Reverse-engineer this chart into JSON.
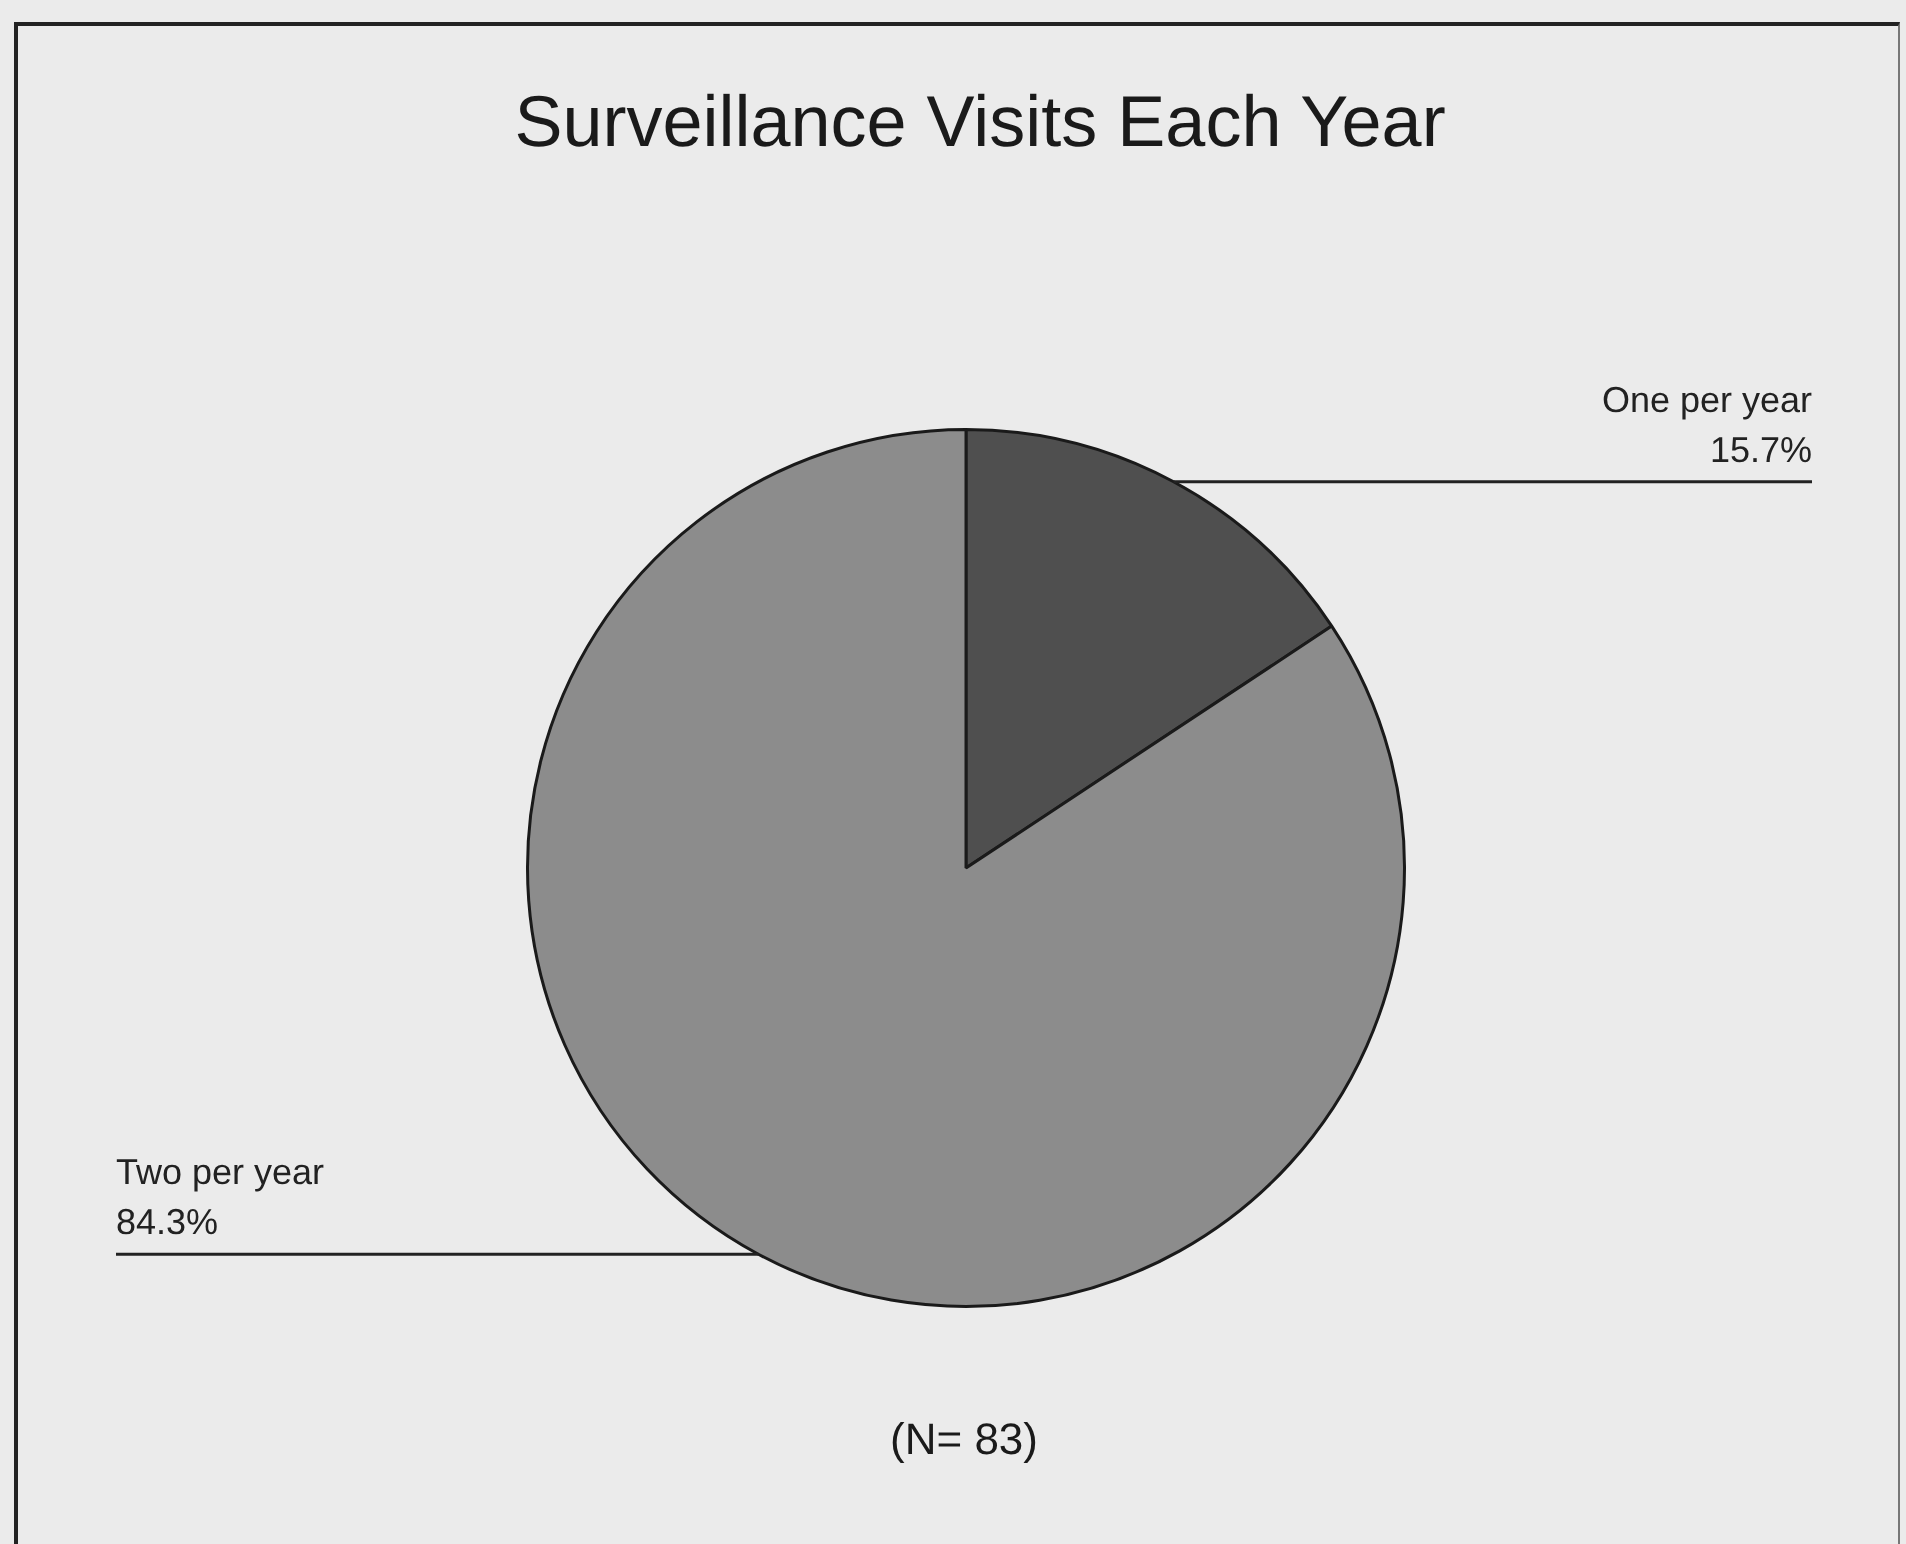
{
  "chart_data": {
    "type": "pie",
    "title": "Surveillance Visits Each Year",
    "categories": [
      "One per year",
      "Two per year"
    ],
    "values": [
      15.7,
      84.3
    ],
    "colors": [
      "#4f4f4f",
      "#8c8c8c"
    ],
    "value_labels": [
      "15.7%",
      "84.3%"
    ],
    "annotations": [
      "(N= 83)"
    ],
    "legend": false
  }
}
